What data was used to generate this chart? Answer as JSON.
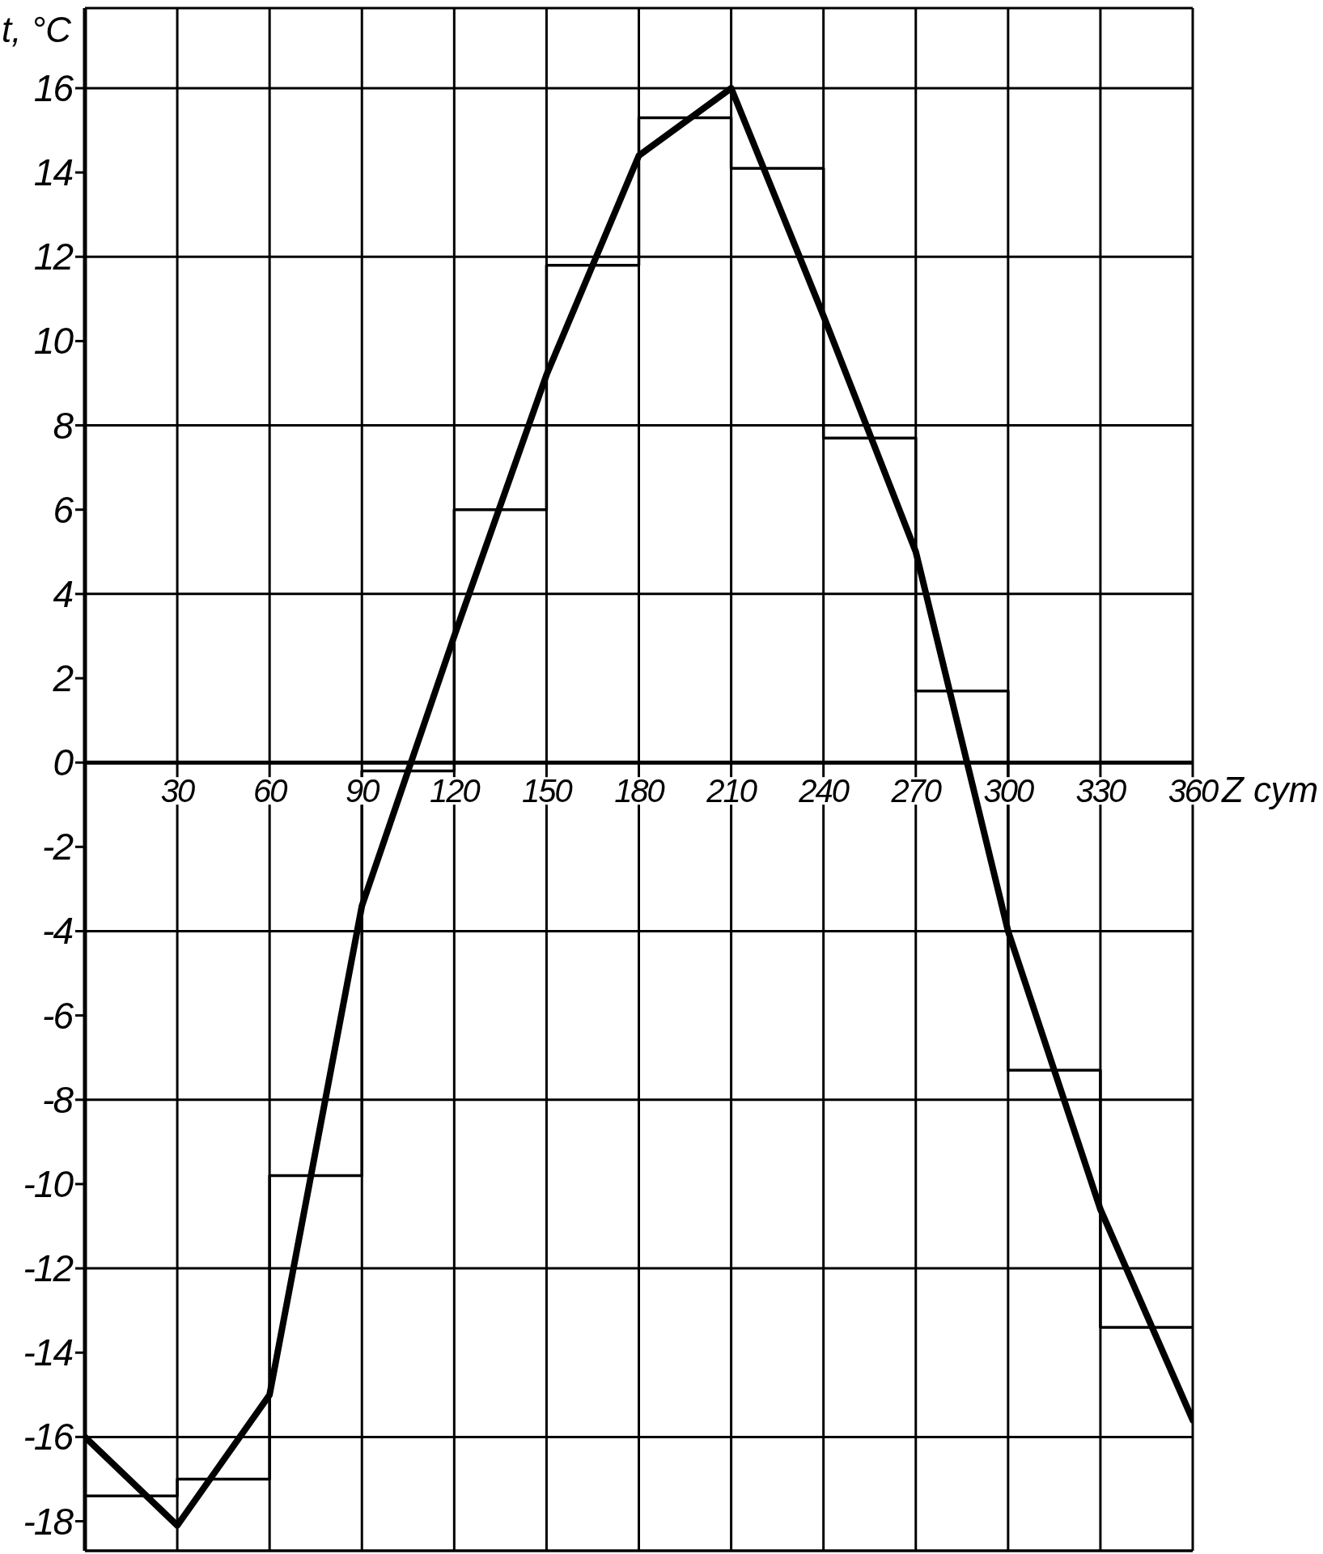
{
  "chart_data": {
    "type": "line",
    "xlabel": "Z сут",
    "ylabel": "t, °C",
    "xlim": [
      0,
      360
    ],
    "xticks": [
      30,
      60,
      90,
      120,
      150,
      180,
      210,
      240,
      270,
      300,
      330,
      360
    ],
    "ylim": [
      -18.7,
      17.9
    ],
    "yticks": [
      -18,
      -16,
      -14,
      -12,
      -10,
      -8,
      -6,
      -4,
      -2,
      0,
      2,
      4,
      6,
      8,
      10,
      12,
      14,
      16
    ],
    "grid": true,
    "series": [
      {
        "type": "step",
        "color": "#000000",
        "x": [
          0,
          30,
          60,
          90,
          120,
          150,
          180,
          210,
          240,
          270,
          300,
          330,
          360
        ],
        "values": [
          -17.4,
          -17.0,
          -9.8,
          -0.2,
          6.0,
          11.8,
          15.3,
          14.1,
          7.7,
          1.7,
          -7.3,
          -13.4,
          -13.4
        ]
      },
      {
        "color": "#000000",
        "x": [
          0,
          30,
          60,
          90,
          120,
          150,
          180,
          210,
          240,
          270,
          300,
          330,
          360
        ],
        "values": [
          -16.0,
          -18.1,
          -15.0,
          -3.4,
          3.0,
          9.2,
          14.4,
          16.0,
          10.6,
          5.0,
          -4.0,
          -10.6,
          -15.6
        ]
      }
    ]
  }
}
